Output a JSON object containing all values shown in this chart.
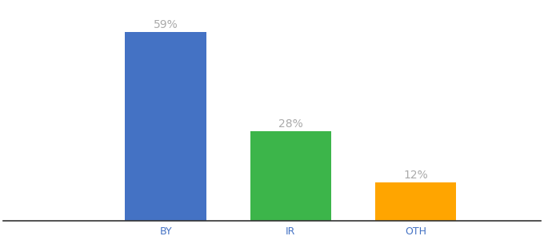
{
  "categories": [
    "BY",
    "IR",
    "OTH"
  ],
  "values": [
    59,
    28,
    12
  ],
  "labels": [
    "59%",
    "28%",
    "12%"
  ],
  "bar_colors": [
    "#4472C4",
    "#3CB54A",
    "#FFA500"
  ],
  "label_color": "#aaaaaa",
  "background_color": "#ffffff",
  "ylim": [
    0,
    68
  ],
  "xlim": [
    -0.8,
    3.5
  ],
  "bar_width": 0.65,
  "bar_positions": [
    0.5,
    1.5,
    2.5
  ],
  "label_fontsize": 10,
  "tick_fontsize": 9,
  "tick_color": "#4472C4",
  "spine_color": "#333333"
}
